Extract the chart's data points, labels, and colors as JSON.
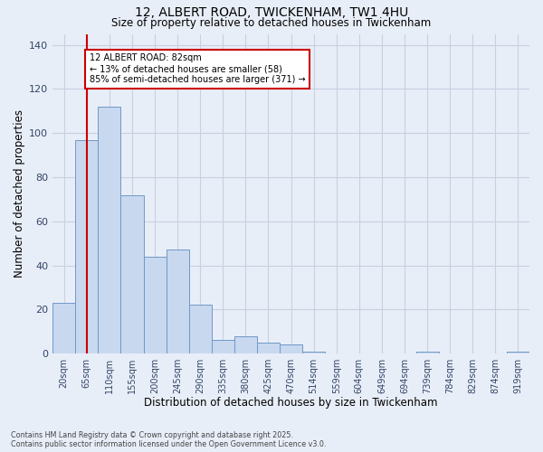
{
  "title_line1": "12, ALBERT ROAD, TWICKENHAM, TW1 4HU",
  "title_line2": "Size of property relative to detached houses in Twickenham",
  "xlabel": "Distribution of detached houses by size in Twickenham",
  "ylabel": "Number of detached properties",
  "bar_color": "#c8d8ef",
  "bar_edge_color": "#7098c8",
  "grid_color": "#c8d0e0",
  "background_color": "#e8eef8",
  "fig_background_color": "#e8eef8",
  "categories": [
    "20sqm",
    "65sqm",
    "110sqm",
    "155sqm",
    "200sqm",
    "245sqm",
    "290sqm",
    "335sqm",
    "380sqm",
    "425sqm",
    "470sqm",
    "514sqm",
    "559sqm",
    "604sqm",
    "649sqm",
    "694sqm",
    "739sqm",
    "784sqm",
    "829sqm",
    "874sqm",
    "919sqm"
  ],
  "values": [
    23,
    97,
    112,
    72,
    44,
    47,
    22,
    6,
    8,
    5,
    4,
    1,
    0,
    0,
    0,
    0,
    1,
    0,
    0,
    0,
    1
  ],
  "property_label": "12 ALBERT ROAD: 82sqm",
  "pct_smaller": 13,
  "count_smaller": 58,
  "pct_semi_larger": 85,
  "count_semi_larger": 371,
  "vline_color": "#cc0000",
  "annotation_box_color": "#ffffff",
  "annotation_box_edge": "#cc0000",
  "footer_line1": "Contains HM Land Registry data © Crown copyright and database right 2025.",
  "footer_line2": "Contains public sector information licensed under the Open Government Licence v3.0.",
  "ylim": [
    0,
    145
  ],
  "yticks": [
    0,
    20,
    40,
    60,
    80,
    100,
    120,
    140
  ]
}
